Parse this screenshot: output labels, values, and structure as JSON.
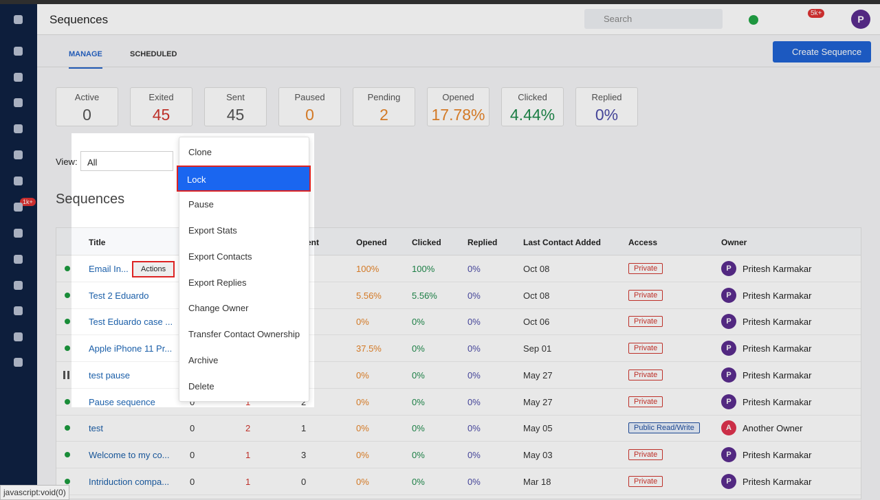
{
  "header": {
    "title": "Sequences",
    "search_placeholder": "Search",
    "notification_badge": "5k+",
    "user_initial": "P"
  },
  "sidebar": {
    "mail_badge": "1k+"
  },
  "tabs": [
    "MANAGE",
    "SCHEDULED"
  ],
  "create_button": "Create Sequence",
  "stats": [
    {
      "label": "Active",
      "value": "0",
      "color": "#555"
    },
    {
      "label": "Exited",
      "value": "45",
      "color": "#d0342c"
    },
    {
      "label": "Sent",
      "value": "45",
      "color": "#555"
    },
    {
      "label": "Paused",
      "value": "0",
      "color": "#e8862a"
    },
    {
      "label": "Pending",
      "value": "2",
      "color": "#e8862a"
    },
    {
      "label": "Opened",
      "value": "17.78%",
      "color": "#e8862a"
    },
    {
      "label": "Clicked",
      "value": "4.44%",
      "color": "#1f8b4c"
    },
    {
      "label": "Replied",
      "value": "0%",
      "color": "#4b4ba8"
    }
  ],
  "view": {
    "label": "View:",
    "selected": "All"
  },
  "section_title": "Sequences",
  "table": {
    "columns": [
      "Title",
      null,
      null,
      "Sent",
      "Opened",
      "Clicked",
      "Replied",
      "Last Contact Added",
      "Access",
      "Owner"
    ],
    "row_action": "Actions",
    "rows": [
      {
        "title": "Email In...",
        "active": null,
        "exited": null,
        "sent": null,
        "opened": "100%",
        "clicked": "100%",
        "replied": "0%",
        "last": "Oct 08",
        "access": "Private",
        "owner_initial": "P",
        "owner": "Pritesh Karmakar"
      },
      {
        "title": "Test 2 Eduardo",
        "active": null,
        "exited": null,
        "sent": null,
        "opened": "5.56%",
        "clicked": "5.56%",
        "replied": "0%",
        "last": "Oct 08",
        "access": "Private",
        "owner_initial": "P",
        "owner": "Pritesh Karmakar"
      },
      {
        "title": "Test Eduardo case ...",
        "active": null,
        "exited": null,
        "sent": null,
        "opened": "0%",
        "clicked": "0%",
        "replied": "0%",
        "last": "Oct 06",
        "access": "Private",
        "owner_initial": "P",
        "owner": "Pritesh Karmakar"
      },
      {
        "title": "Apple iPhone 11 Pr...",
        "active": null,
        "exited": null,
        "sent": null,
        "opened": "37.5%",
        "clicked": "0%",
        "replied": "0%",
        "last": "Sep 01",
        "access": "Private",
        "owner_initial": "P",
        "owner": "Pritesh Karmakar"
      },
      {
        "title": "test pause",
        "active": null,
        "exited": null,
        "sent": null,
        "opened": "0%",
        "clicked": "0%",
        "replied": "0%",
        "last": "May 27",
        "access": "Private",
        "owner_initial": "P",
        "owner": "Pritesh Karmakar"
      },
      {
        "title": "Pause sequence",
        "active": "0",
        "exited": "1",
        "sent": "2",
        "opened": "0%",
        "clicked": "0%",
        "replied": "0%",
        "last": "May 27",
        "access": "Private",
        "owner_initial": "P",
        "owner": "Pritesh Karmakar"
      },
      {
        "title": "test",
        "active": "0",
        "exited": "2",
        "sent": "1",
        "opened": "0%",
        "clicked": "0%",
        "replied": "0%",
        "last": "May 05",
        "access": "Public Read/Write",
        "owner_initial": "A",
        "owner": "Another Owner"
      },
      {
        "title": "Welcome to my co...",
        "active": "0",
        "exited": "1",
        "sent": "3",
        "opened": "0%",
        "clicked": "0%",
        "replied": "0%",
        "last": "May 03",
        "access": "Private",
        "owner_initial": "P",
        "owner": "Pritesh Karmakar"
      },
      {
        "title": "Intriduction compa...",
        "active": "0",
        "exited": "1",
        "sent": "0",
        "opened": "0%",
        "clicked": "0%",
        "replied": "0%",
        "last": "Mar 18",
        "access": "Private",
        "owner_initial": "P",
        "owner": "Pritesh Karmakar"
      }
    ]
  },
  "menu": [
    "Clone",
    "Lock",
    "Pause",
    "Export Stats",
    "Export Contacts",
    "Export Replies",
    "Change Owner",
    "Transfer Contact Ownership",
    "Archive",
    "Delete"
  ],
  "status_bar": "javascript:void(0)"
}
